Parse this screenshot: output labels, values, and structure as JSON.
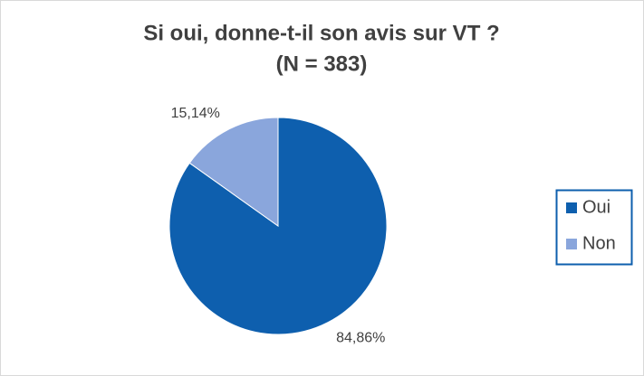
{
  "chart_data": {
    "type": "pie",
    "title": "Si oui, donne-t-il son avis sur VT ?",
    "subtitle": "(N = 383)",
    "categories": [
      "Oui",
      "Non"
    ],
    "values": [
      84.86,
      15.14
    ],
    "value_labels": [
      "84,86%",
      "15,14%"
    ],
    "colors": [
      "#0e5fae",
      "#8aa6dc"
    ],
    "legend": "right"
  }
}
